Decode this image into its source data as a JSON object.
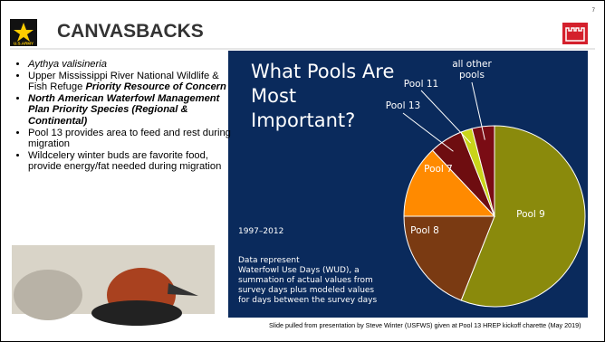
{
  "header": {
    "title": "CANVASBACKS",
    "slide_number": "7",
    "logo_text": "U.S.ARMY"
  },
  "bullets": [
    [
      {
        "text": "Aythya valisineria",
        "style": "italic"
      }
    ],
    [
      {
        "text": "Upper Mississippi River National Wildlife & Fish Refuge ",
        "style": "normal"
      },
      {
        "text": "Priority Resource of Concern",
        "style": "bold-italic"
      }
    ],
    [
      {
        "text": "North American Waterfowl Management Plan Priority Species (Regional & Continental)",
        "style": "bold-italic"
      }
    ],
    [
      {
        "text": "Pool 13 provides area to feed and rest during migration",
        "style": "normal"
      }
    ],
    [
      {
        "text": "Wildcelery winter buds are favorite food, provide energy/fat needed during migration",
        "style": "normal"
      }
    ]
  ],
  "chart_data": {
    "type": "pie",
    "title_lines": [
      "What Pools Are",
      "Most",
      "Important?"
    ],
    "period": "1997–2012",
    "note_lines": [
      "Data represent",
      "Waterfowl Use Days (WUD), a",
      "summation of actual values from",
      "survey days plus modeled values",
      "for days between the survey days"
    ],
    "categories": [
      "Pool 9",
      "Pool 8",
      "Pool 7",
      "Pool 13",
      "Pool 11",
      "all other pools"
    ],
    "values": [
      56,
      19,
      13,
      6,
      2,
      4
    ],
    "colors": [
      "#8a8a0c",
      "#7a3a12",
      "#ff8a00",
      "#6e0d10",
      "#c9d41a",
      "#7a0c14"
    ]
  },
  "caption": "Slide pulled from presentation by Steve Winter (USFWS) given at Pool 13 HREP kickoff charette (May 2019)"
}
